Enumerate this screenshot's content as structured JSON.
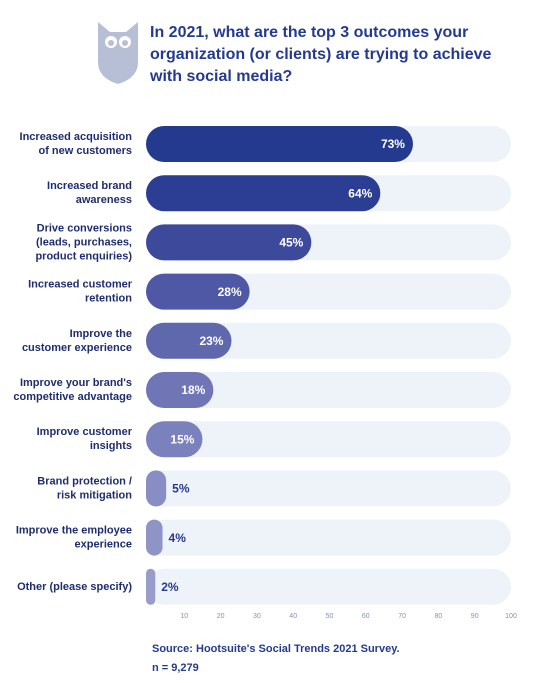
{
  "chart_data": {
    "type": "bar",
    "title": "In 2021, what are the top 3 outcomes your organization (or clients) are trying to achieve with social media?",
    "categories": [
      "Increased acquisition\nof new customers",
      "Increased brand\nawareness",
      "Drive conversions\n(leads, purchases,\nproduct enquiries)",
      "Increased customer\nretention",
      "Improve the\ncustomer experience",
      "Improve your brand's\ncompetitive advantage",
      "Improve customer\ninsights",
      "Brand protection /\nrisk mitigation",
      "Improve the employee\nexperience",
      "Other (please specify)"
    ],
    "values": [
      73,
      64,
      45,
      28,
      23,
      18,
      15,
      5,
      4,
      2
    ],
    "value_labels": [
      "73%",
      "64%",
      "45%",
      "28%",
      "23%",
      "18%",
      "15%",
      "5%",
      "4%",
      "2%"
    ],
    "colors": [
      "#233a8e",
      "#2c3e93",
      "#3d4a9c",
      "#4f58a5",
      "#5f67ad",
      "#6f75b5",
      "#7b81bc",
      "#888ec3",
      "#8e94c6",
      "#979cca"
    ],
    "xlim": [
      0,
      100
    ],
    "xticks": [
      10,
      20,
      30,
      40,
      50,
      60,
      70,
      80,
      90,
      100
    ],
    "source": "Source:  Hootsuite's Social Trends 2021 Survey.",
    "sample_size": "n = 9,279"
  }
}
